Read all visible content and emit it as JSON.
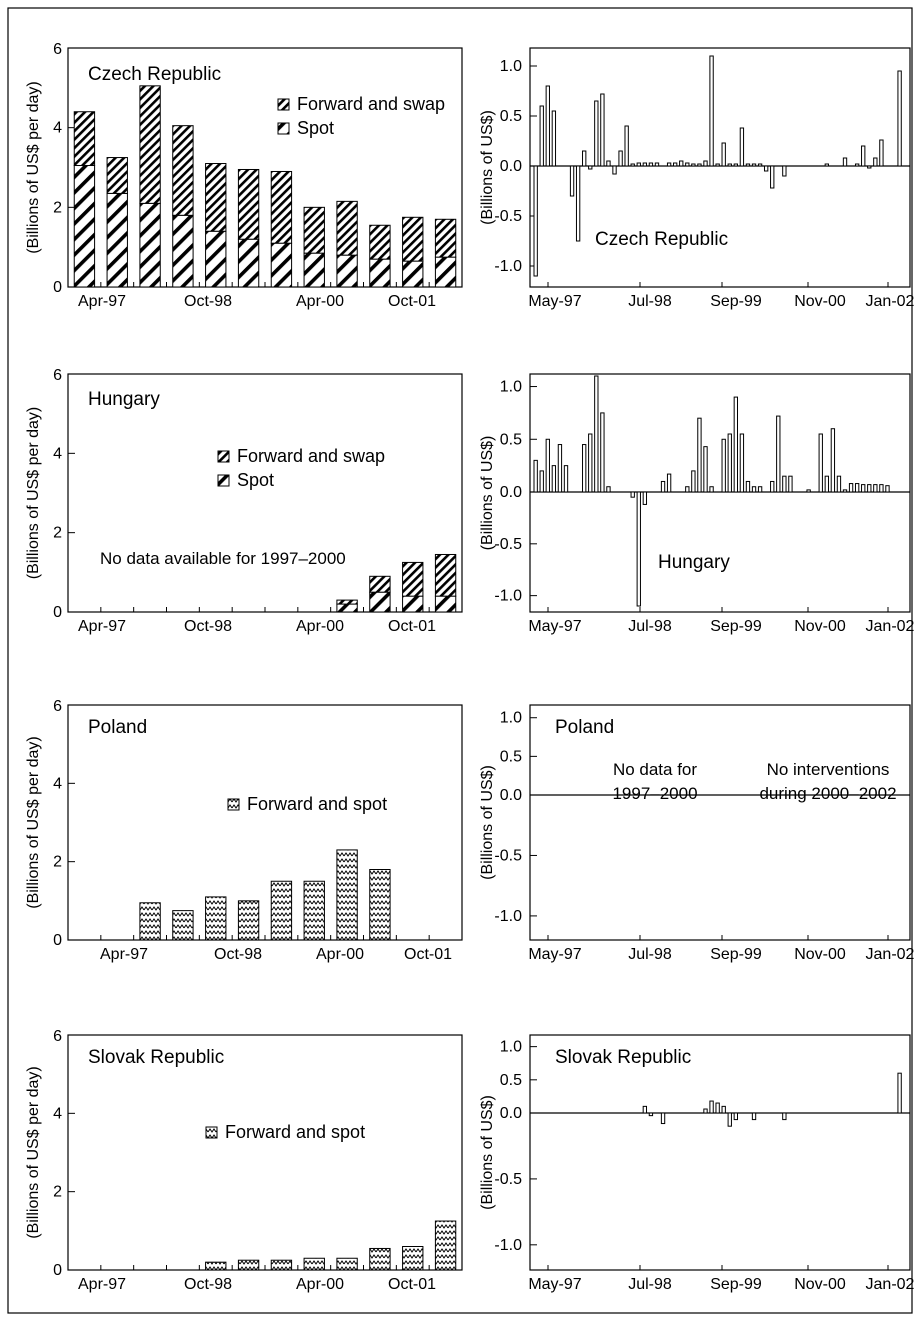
{
  "chart_data": [
    {
      "id": "czech-volume",
      "type": "bar",
      "stacked": true,
      "title": "Czech Republic",
      "ylabel": "(Billions of US$ per day)",
      "ylim": [
        0,
        6
      ],
      "y_ticks": [
        "0",
        "2",
        "4",
        "6"
      ],
      "x_tick_labels": [
        "Apr-97",
        "Oct-98",
        "Apr-00",
        "Oct-01"
      ],
      "legend": [
        {
          "label": "Forward and swap",
          "pattern": "hatch-dense"
        },
        {
          "label": "Spot",
          "pattern": "hatch-wide"
        }
      ],
      "series": [
        {
          "name": "Spot",
          "values": [
            3.05,
            2.35,
            2.1,
            1.8,
            1.4,
            1.2,
            1.1,
            0.85,
            0.8,
            0.7,
            0.65,
            0.75
          ]
        },
        {
          "name": "Forward and swap",
          "values": [
            1.35,
            0.9,
            2.95,
            2.25,
            1.7,
            1.75,
            1.8,
            1.15,
            1.35,
            0.85,
            1.1,
            0.95
          ]
        }
      ]
    },
    {
      "id": "czech-interventions",
      "type": "bar",
      "title": "Czech Republic",
      "ylabel": "(Billions of US$)",
      "ylim": [
        -1.1,
        1.1
      ],
      "y_ticks": [
        "-1.0",
        "-0.5",
        "0.0",
        "0.5",
        "1.0"
      ],
      "x_tick_labels": [
        "May-97",
        "Jul-98",
        "Sep-99",
        "Nov-00",
        "Jan-02"
      ],
      "months": 61,
      "values": [
        -1.1,
        0.6,
        0.8,
        0.55,
        0,
        0,
        -0.3,
        -0.75,
        0.15,
        -0.03,
        0.65,
        0.72,
        0.05,
        -0.08,
        0.15,
        0.4,
        0.02,
        0.03,
        0.03,
        0.03,
        0.03,
        0,
        0.03,
        0.03,
        0.05,
        0.03,
        0.02,
        0.02,
        0.05,
        1.1,
        0.02,
        0.23,
        0.02,
        0.02,
        0.38,
        0.02,
        0.02,
        0.02,
        -0.05,
        -0.22,
        0,
        -0.1,
        0,
        0,
        0,
        0,
        0,
        0,
        0.02,
        0,
        0,
        0.08,
        0,
        0.02,
        0.2,
        -0.02,
        0.08,
        0.26,
        0,
        0,
        0.95
      ]
    },
    {
      "id": "hungary-volume",
      "type": "bar",
      "stacked": true,
      "title": "Hungary",
      "ylabel": "(Billions of US$ per day)",
      "ylim": [
        0,
        6
      ],
      "y_ticks": [
        "0",
        "2",
        "4",
        "6"
      ],
      "x_tick_labels": [
        "Apr-97",
        "Oct-98",
        "Apr-00",
        "Oct-01"
      ],
      "legend": [
        {
          "label": "Forward and swap",
          "pattern": "hatch-dense"
        },
        {
          "label": "Spot",
          "pattern": "hatch-wide"
        }
      ],
      "annotation": "No data available for 1997–2000",
      "series": [
        {
          "name": "Spot",
          "values": [
            null,
            null,
            null,
            null,
            null,
            null,
            null,
            null,
            0.2,
            0.5,
            0.4,
            0.4
          ]
        },
        {
          "name": "Forward and swap",
          "values": [
            null,
            null,
            null,
            null,
            null,
            null,
            null,
            null,
            0.1,
            0.4,
            0.85,
            1.05
          ]
        }
      ]
    },
    {
      "id": "hungary-interventions",
      "type": "bar",
      "title": "Hungary",
      "ylabel": "(Billions of US$)",
      "ylim": [
        -1.1,
        1.1
      ],
      "y_ticks": [
        "-1.0",
        "-0.5",
        "0.0",
        "0.5",
        "1.0"
      ],
      "x_tick_labels": [
        "May-97",
        "Jul-98",
        "Sep-99",
        "Nov-00",
        "Jan-02"
      ],
      "months": 61,
      "values": [
        0.3,
        0.2,
        0.5,
        0.25,
        0.45,
        0.25,
        0,
        0,
        0.45,
        0.55,
        1.1,
        0.75,
        0.05,
        0,
        0,
        0,
        -0.05,
        -1.1,
        -0.12,
        0,
        0,
        0.1,
        0.17,
        0,
        0,
        0.05,
        0.2,
        0.7,
        0.43,
        0.05,
        0,
        0.5,
        0.55,
        0.9,
        0.55,
        0.1,
        0.05,
        0.05,
        0,
        0.1,
        0.72,
        0.15,
        0.15,
        0,
        0,
        0.02,
        0,
        0.55,
        0.15,
        0.6,
        0.15,
        0.02,
        0.08,
        0.08,
        0.07,
        0.07,
        0.07,
        0.07,
        0.06,
        0,
        0
      ]
    },
    {
      "id": "poland-volume",
      "type": "bar",
      "title": "Poland",
      "ylabel": "(Billions of US$ per day)",
      "ylim": [
        0,
        6
      ],
      "y_ticks": [
        "0",
        "2",
        "4",
        "6"
      ],
      "x_tick_labels": [
        "Apr-97",
        "Oct-98",
        "Apr-00",
        "Oct-01"
      ],
      "legend": [
        {
          "label": "Forward and spot",
          "pattern": "zigzag"
        }
      ],
      "series": [
        {
          "name": "Forward and spot",
          "values": [
            null,
            null,
            0.95,
            0.75,
            1.1,
            1.0,
            1.5,
            1.5,
            2.3,
            1.8,
            null,
            null
          ]
        }
      ]
    },
    {
      "id": "poland-interventions",
      "type": "bar",
      "title": "Poland",
      "ylabel": "(Billions of US$)",
      "ylim": [
        -1.1,
        1.1
      ],
      "y_ticks": [
        "-1.0",
        "-0.5",
        "0.0",
        "0.5",
        "1.0"
      ],
      "x_tick_labels": [
        "May-97",
        "Jul-98",
        "Sep-99",
        "Nov-00",
        "Jan-02"
      ],
      "notes": [
        [
          "No data for",
          "1997–2000"
        ],
        [
          "No interventions",
          "during 2000–2002"
        ]
      ],
      "values": []
    },
    {
      "id": "slovak-volume",
      "type": "bar",
      "title": "Slovak Republic",
      "ylabel": "(Billions of US$ per day)",
      "ylim": [
        0,
        6
      ],
      "y_ticks": [
        "0",
        "2",
        "4",
        "6"
      ],
      "x_tick_labels": [
        "Apr-97",
        "Oct-98",
        "Apr-00",
        "Oct-01"
      ],
      "legend": [
        {
          "label": "Forward and spot",
          "pattern": "zigzag"
        }
      ],
      "series": [
        {
          "name": "Forward and spot",
          "values": [
            null,
            null,
            null,
            null,
            0.2,
            0.25,
            0.25,
            0.3,
            0.3,
            0.55,
            0.6,
            1.25
          ]
        }
      ]
    },
    {
      "id": "slovak-interventions",
      "type": "bar",
      "title": "Slovak Republic",
      "ylabel": "(Billions of US$)",
      "ylim": [
        -1.1,
        1.1
      ],
      "y_ticks": [
        "-1.0",
        "-0.5",
        "0.0",
        "0.5",
        "1.0"
      ],
      "x_tick_labels": [
        "May-97",
        "Jul-98",
        "Sep-99",
        "Nov-00",
        "Jan-02"
      ],
      "months": 61,
      "values": [
        0,
        0,
        0,
        0,
        0,
        0,
        0,
        0,
        0,
        0,
        0,
        0,
        0,
        0,
        0,
        0,
        0,
        0,
        0.1,
        -0.02,
        0,
        -0.08,
        0,
        0,
        0,
        0,
        0,
        0,
        0.06,
        0.18,
        0.15,
        0.1,
        -0.1,
        -0.05,
        0,
        0,
        -0.05,
        0,
        0,
        0,
        0,
        -0.05,
        0,
        0,
        0,
        0,
        0,
        0,
        0,
        0,
        0,
        0,
        0,
        0,
        0,
        0,
        0,
        0,
        0,
        0,
        0.6
      ]
    }
  ]
}
